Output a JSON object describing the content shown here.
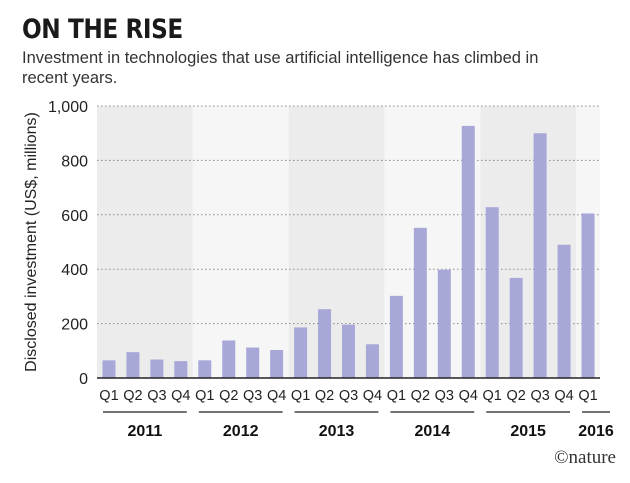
{
  "header": {
    "title": "ON THE RISE",
    "subtitle": "Investment in technologies that use artificial intelligence has climbed in recent years."
  },
  "brand": {
    "label": "©nature"
  },
  "chart_data": {
    "type": "bar",
    "title": "ON THE RISE",
    "subtitle": "Investment in technologies that use artificial intelligence has climbed in recent years.",
    "xlabel": "",
    "ylabel": "Disclosed investment (US$, millions)",
    "ylim": [
      0,
      1000
    ],
    "yticks": [
      0,
      200,
      400,
      600,
      800,
      1000
    ],
    "ytick_labels": [
      "0",
      "200",
      "400",
      "600",
      "800",
      "1,000"
    ],
    "grid": true,
    "categories": [
      "Q1",
      "Q2",
      "Q3",
      "Q4",
      "Q1",
      "Q2",
      "Q3",
      "Q4",
      "Q1",
      "Q2",
      "Q3",
      "Q4",
      "Q1",
      "Q2",
      "Q3",
      "Q4",
      "Q1",
      "Q2",
      "Q3",
      "Q4",
      "Q1"
    ],
    "values": [
      65,
      95,
      68,
      62,
      65,
      138,
      112,
      103,
      186,
      253,
      196,
      124,
      302,
      552,
      398,
      927,
      628,
      368,
      900,
      490,
      605
    ],
    "groups": [
      {
        "label": "2011",
        "count": 4
      },
      {
        "label": "2012",
        "count": 4
      },
      {
        "label": "2013",
        "count": 4
      },
      {
        "label": "2014",
        "count": 4
      },
      {
        "label": "2015",
        "count": 4
      },
      {
        "label": "2016",
        "count": 1
      }
    ],
    "colors": {
      "bar": "#a8a8d8",
      "band_dark": "#ececec",
      "band_light": "#f6f6f6",
      "grid": "#8a8a8a",
      "axis": "#222222"
    }
  }
}
